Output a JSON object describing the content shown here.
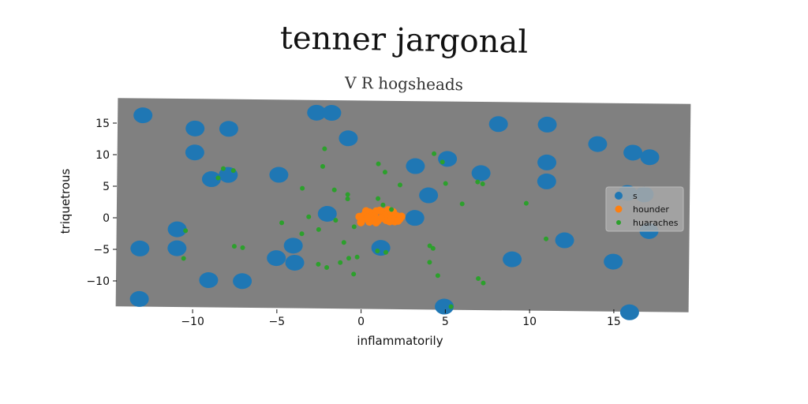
{
  "chart_data": {
    "type": "scatter",
    "title": "tenner jargonal",
    "subtitle": "V R hogsheads",
    "xlabel": "inflammatorily",
    "ylabel": "triquetrous",
    "xlim": [
      -14.5,
      19.5
    ],
    "ylim": [
      -14.5,
      18.5
    ],
    "xticks": [
      -10,
      -5,
      0,
      5,
      10,
      15
    ],
    "yticks": [
      -10,
      -5,
      0,
      5,
      10,
      15
    ],
    "xtick_labels": [
      "−10",
      "−5",
      "0",
      "5",
      "10",
      "15"
    ],
    "ytick_labels": [
      "−10",
      "−5",
      "0",
      "5",
      "10",
      "15"
    ],
    "plot_background": "#808080",
    "legend_position": "center-right",
    "series": [
      {
        "name": "s",
        "color": "#1f77b4",
        "marker_size": "large",
        "points": [
          [
            -13,
            15.8
          ],
          [
            -9.9,
            13.8
          ],
          [
            -7.9,
            13.8
          ],
          [
            -9.9,
            10
          ],
          [
            -2.7,
            16.5
          ],
          [
            -1.8,
            16.5
          ],
          [
            -8.9,
            5.8
          ],
          [
            -7.9,
            6.5
          ],
          [
            -4.9,
            6.6
          ],
          [
            -0.8,
            12.5
          ],
          [
            3.2,
            8.2
          ],
          [
            5.1,
            9.4
          ],
          [
            8.1,
            15
          ],
          [
            11,
            15
          ],
          [
            14,
            12
          ],
          [
            16.1,
            10.7
          ],
          [
            17.1,
            10
          ],
          [
            11,
            9
          ],
          [
            7.1,
            7.2
          ],
          [
            11,
            6
          ],
          [
            15.8,
            4.3
          ],
          [
            16.8,
            4.1
          ],
          [
            4,
            3.6
          ],
          [
            -2,
            0.5
          ],
          [
            3.2,
            0
          ],
          [
            -10.9,
            -2.2
          ],
          [
            -10.9,
            -5.2
          ],
          [
            -13.1,
            -5.3
          ],
          [
            -4,
            -4.6
          ],
          [
            -5,
            -6.6
          ],
          [
            -3.9,
            -7.3
          ],
          [
            1.2,
            -4.8
          ],
          [
            -9,
            -10.2
          ],
          [
            -7,
            -10.3
          ],
          [
            9,
            -6.4
          ],
          [
            12.1,
            -3.3
          ],
          [
            15,
            -6.6
          ],
          [
            -13.1,
            -13.3
          ],
          [
            5,
            -14
          ],
          [
            16,
            -14.6
          ],
          [
            17.1,
            -1.7
          ]
        ]
      },
      {
        "name": "hounder",
        "color": "#ff7f0e",
        "marker_size": "medium",
        "points": [
          [
            0.2,
            0.4
          ],
          [
            0.5,
            0.8
          ],
          [
            0.9,
            1.0
          ],
          [
            1.3,
            0.9
          ],
          [
            1.7,
            0.7
          ],
          [
            2.1,
            0.3
          ],
          [
            2.3,
            -0.2
          ],
          [
            2.0,
            -0.6
          ],
          [
            1.5,
            -0.4
          ],
          [
            1.0,
            -0.5
          ],
          [
            0.5,
            -0.7
          ],
          [
            0.1,
            -0.3
          ],
          [
            -0.1,
            0.1
          ],
          [
            0.8,
            0.2
          ],
          [
            1.4,
            0.3
          ],
          [
            1.8,
            -0.1
          ],
          [
            0.6,
            -0.2
          ],
          [
            1.2,
            -0.1
          ],
          [
            0.3,
            1.0
          ],
          [
            1.1,
            1.1
          ],
          [
            1.6,
            1.2
          ],
          [
            2.4,
            0.2
          ],
          [
            0.0,
            -0.8
          ],
          [
            0.9,
            -0.8
          ],
          [
            1.9,
            0.9
          ],
          [
            0.4,
            0.0
          ],
          [
            2.2,
            -0.5
          ],
          [
            1.7,
            -0.6
          ]
        ]
      },
      {
        "name": "huaraches",
        "color": "#2ca02c",
        "marker_size": "small",
        "points": [
          [
            -2.2,
            10.8
          ],
          [
            -3.5,
            4.5
          ],
          [
            -2.3,
            8
          ],
          [
            -0.8,
            3.6
          ],
          [
            -1.6,
            4.3
          ],
          [
            -0.8,
            2.9
          ],
          [
            -3.1,
            0
          ],
          [
            -2.5,
            -2
          ],
          [
            -4.7,
            -1
          ],
          [
            -3.5,
            -2.7
          ],
          [
            -1,
            -4
          ],
          [
            -1.5,
            -0.5
          ],
          [
            -0.4,
            -1.5
          ],
          [
            -0.7,
            -6.5
          ],
          [
            -0.2,
            -6.3
          ],
          [
            -1.2,
            -7.2
          ],
          [
            -2.5,
            -7.5
          ],
          [
            -2,
            -8
          ],
          [
            -0.4,
            -9
          ],
          [
            1,
            -5.3
          ],
          [
            1.5,
            -5.5
          ],
          [
            1,
            3
          ],
          [
            1.3,
            2
          ],
          [
            1.8,
            1.3
          ],
          [
            1.4,
            7.2
          ],
          [
            1.0,
            8.5
          ],
          [
            2.3,
            5.2
          ],
          [
            4.3,
            10.2
          ],
          [
            4.8,
            8.9
          ],
          [
            5,
            5.5
          ],
          [
            6,
            2.3
          ],
          [
            4.1,
            -4.4
          ],
          [
            4.3,
            -4.8
          ],
          [
            4.1,
            -7
          ],
          [
            4.6,
            -9.1
          ],
          [
            7,
            -9.5
          ],
          [
            7.3,
            -10.2
          ],
          [
            6.9,
            5.8
          ],
          [
            7.2,
            5.5
          ],
          [
            9.8,
            2.5
          ],
          [
            11,
            -3.1
          ],
          [
            5.4,
            -14
          ],
          [
            -10.4,
            -2.4
          ],
          [
            -10.5,
            -6.8
          ],
          [
            -7.5,
            -4.8
          ],
          [
            -7,
            -5
          ],
          [
            -8.2,
            7.5
          ],
          [
            -7.6,
            7.2
          ],
          [
            -8.5,
            6
          ]
        ]
      }
    ]
  }
}
